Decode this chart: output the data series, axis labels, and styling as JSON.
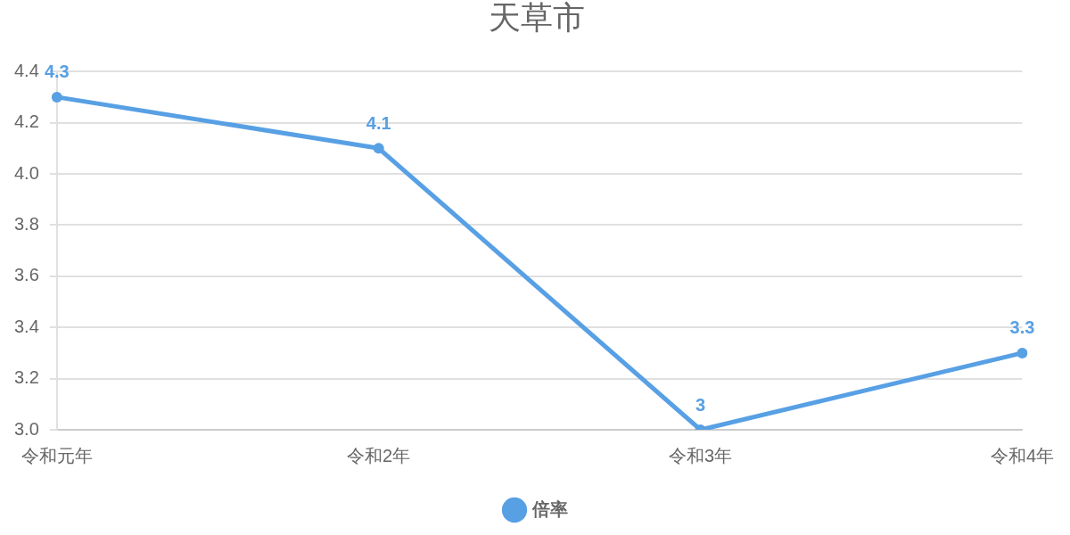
{
  "chart_data": {
    "type": "line",
    "title": "天草市",
    "categories": [
      "令和元年",
      "令和2年",
      "令和3年",
      "令和4年"
    ],
    "series": [
      {
        "name": "倍率",
        "color": "#58a0e4",
        "values": [
          4.3,
          4.1,
          3.0,
          3.3
        ]
      }
    ],
    "ylim": [
      3.0,
      4.4
    ],
    "yticks": [
      {
        "value": 3.0,
        "label": "3.0"
      },
      3.2,
      3.4,
      3.6,
      3.8,
      {
        "value": 4.0,
        "label": "4.0"
      },
      4.2,
      4.4
    ],
    "grid": "y",
    "legend": "bottom",
    "marker": "circle",
    "data_labels": true
  }
}
